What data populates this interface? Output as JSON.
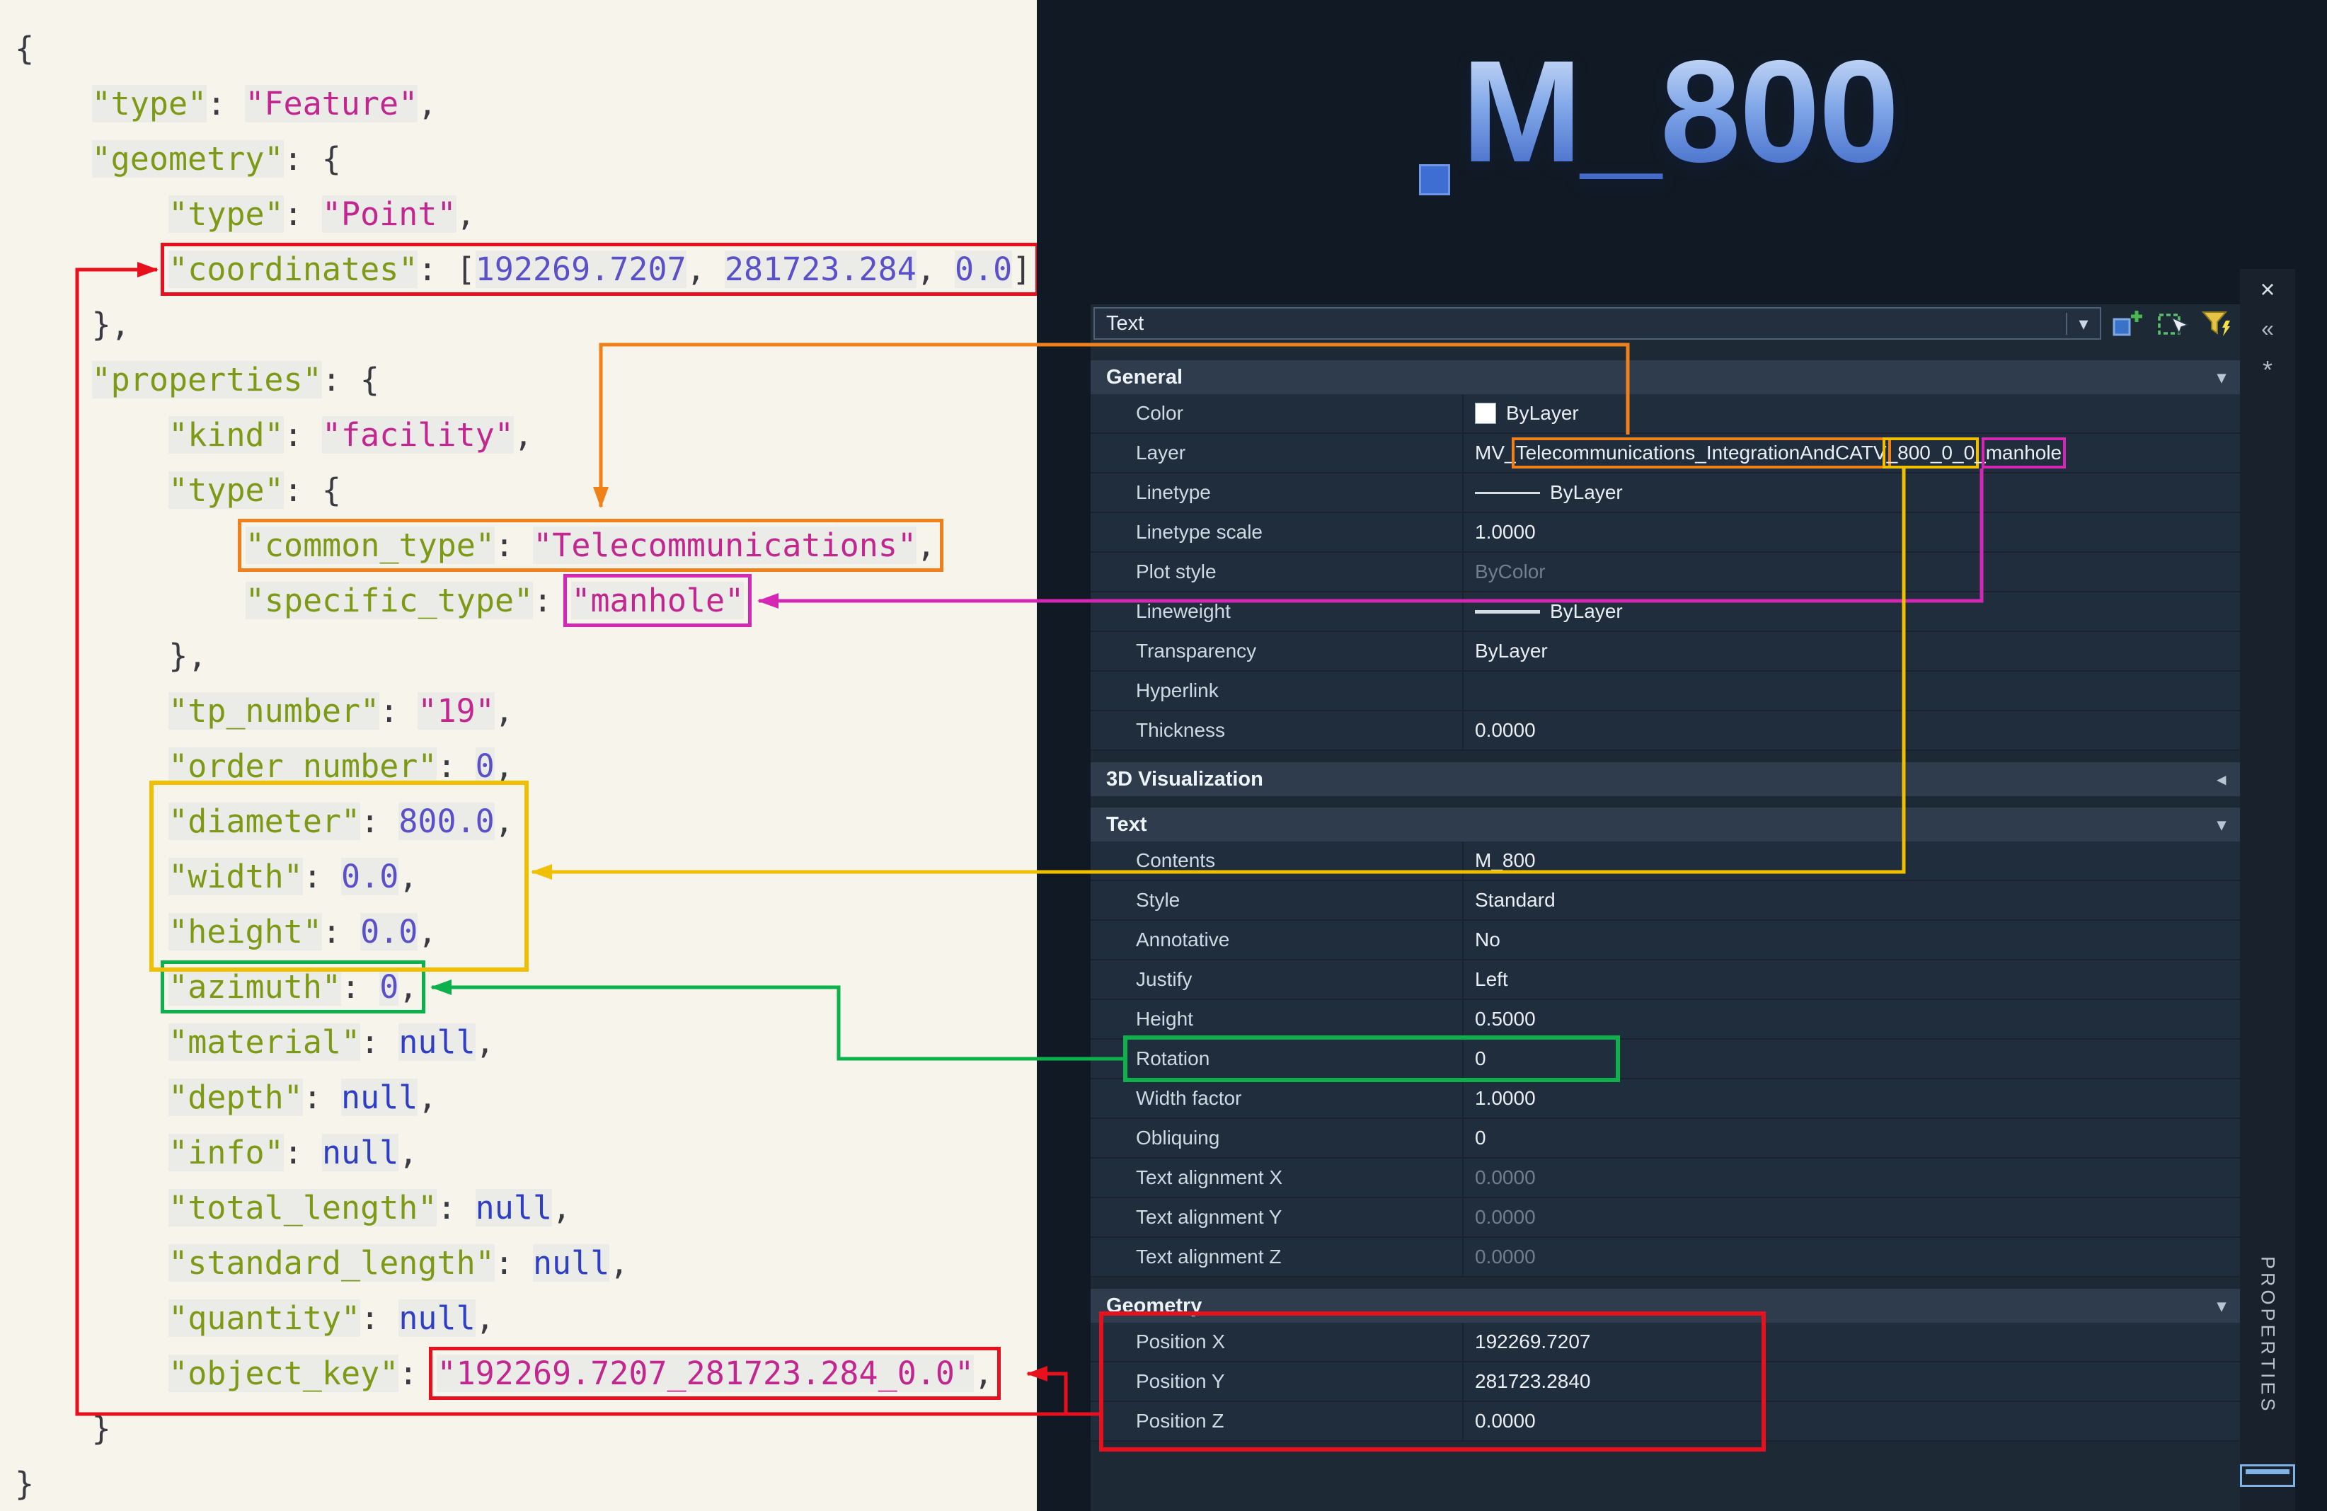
{
  "colors": {
    "red": "#e8101c",
    "orange": "#f08019",
    "magenta": "#d428b4",
    "yellow": "#f0c000",
    "green": "#0db14b",
    "title_blue": "#7fa6e8"
  },
  "canvas": {
    "title": "M_800"
  },
  "code": {
    "lines": [
      {
        "indent": 0,
        "tokens": [
          {
            "c": "p",
            "t": "{"
          }
        ]
      },
      {
        "indent": 1,
        "tokens": [
          {
            "c": "k",
            "t": "\"type\""
          },
          {
            "c": "p",
            "t": ": "
          },
          {
            "c": "s",
            "t": "\"Feature\""
          },
          {
            "c": "p",
            "t": ","
          }
        ]
      },
      {
        "indent": 1,
        "tokens": [
          {
            "c": "k",
            "t": "\"geometry\""
          },
          {
            "c": "p",
            "t": ": {"
          }
        ]
      },
      {
        "indent": 2,
        "tokens": [
          {
            "c": "k",
            "t": "\"type\""
          },
          {
            "c": "p",
            "t": ": "
          },
          {
            "c": "s",
            "t": "\"Point\""
          },
          {
            "c": "p",
            "t": ","
          }
        ]
      },
      {
        "indent": 2,
        "box": {
          "color": "red",
          "from": 0,
          "to": 7
        },
        "tokens": [
          {
            "c": "k",
            "t": "\"coordinates\""
          },
          {
            "c": "p",
            "t": ": ["
          },
          {
            "c": "n",
            "t": "192269.7207"
          },
          {
            "c": "p",
            "t": ", "
          },
          {
            "c": "n",
            "t": "281723.284"
          },
          {
            "c": "p",
            "t": ", "
          },
          {
            "c": "n",
            "t": "0.0"
          },
          {
            "c": "p",
            "t": "]"
          }
        ]
      },
      {
        "indent": 1,
        "tokens": [
          {
            "c": "p",
            "t": "},"
          }
        ]
      },
      {
        "indent": 1,
        "tokens": [
          {
            "c": "k",
            "t": "\"properties\""
          },
          {
            "c": "p",
            "t": ": {"
          }
        ]
      },
      {
        "indent": 2,
        "tokens": [
          {
            "c": "k",
            "t": "\"kind\""
          },
          {
            "c": "p",
            "t": ": "
          },
          {
            "c": "s",
            "t": "\"facility\""
          },
          {
            "c": "p",
            "t": ","
          }
        ]
      },
      {
        "indent": 2,
        "tokens": [
          {
            "c": "k",
            "t": "\"type\""
          },
          {
            "c": "p",
            "t": ": {"
          }
        ]
      },
      {
        "indent": 3,
        "box": {
          "color": "orange",
          "from": 0,
          "to": 3
        },
        "tokens": [
          {
            "c": "k",
            "t": "\"common_type\""
          },
          {
            "c": "p",
            "t": ": "
          },
          {
            "c": "s",
            "t": "\"Telecommunications\""
          },
          {
            "c": "p",
            "t": ","
          }
        ]
      },
      {
        "indent": 3,
        "box": {
          "color": "magenta",
          "from": 2,
          "to": 2
        },
        "tokens": [
          {
            "c": "k",
            "t": "\"specific_type\""
          },
          {
            "c": "p",
            "t": ": "
          },
          {
            "c": "s",
            "t": "\"manhole\""
          }
        ]
      },
      {
        "indent": 2,
        "tokens": [
          {
            "c": "p",
            "t": "},"
          }
        ]
      },
      {
        "indent": 2,
        "tokens": [
          {
            "c": "k",
            "t": "\"tp_number\""
          },
          {
            "c": "p",
            "t": ": "
          },
          {
            "c": "s",
            "t": "\"19\""
          },
          {
            "c": "p",
            "t": ","
          }
        ]
      },
      {
        "indent": 2,
        "tokens": [
          {
            "c": "k",
            "t": "\"order_number\""
          },
          {
            "c": "p",
            "t": ": "
          },
          {
            "c": "n",
            "t": "0"
          },
          {
            "c": "p",
            "t": ","
          }
        ]
      },
      {
        "indent": 2,
        "tokens": [
          {
            "c": "k",
            "t": "\"diameter\""
          },
          {
            "c": "p",
            "t": ": "
          },
          {
            "c": "n",
            "t": "800.0"
          },
          {
            "c": "p",
            "t": ","
          }
        ]
      },
      {
        "indent": 2,
        "tokens": [
          {
            "c": "k",
            "t": "\"width\""
          },
          {
            "c": "p",
            "t": ": "
          },
          {
            "c": "n",
            "t": "0.0"
          },
          {
            "c": "p",
            "t": ","
          }
        ]
      },
      {
        "indent": 2,
        "tokens": [
          {
            "c": "k",
            "t": "\"height\""
          },
          {
            "c": "p",
            "t": ": "
          },
          {
            "c": "n",
            "t": "0.0"
          },
          {
            "c": "p",
            "t": ","
          }
        ]
      },
      {
        "indent": 2,
        "box": {
          "color": "green",
          "from": 0,
          "to": 3
        },
        "tokens": [
          {
            "c": "k",
            "t": "\"azimuth\""
          },
          {
            "c": "p",
            "t": ": "
          },
          {
            "c": "n",
            "t": "0"
          },
          {
            "c": "p",
            "t": ","
          }
        ]
      },
      {
        "indent": 2,
        "tokens": [
          {
            "c": "k",
            "t": "\"material\""
          },
          {
            "c": "p",
            "t": ": "
          },
          {
            "c": "u",
            "t": "null"
          },
          {
            "c": "p",
            "t": ","
          }
        ]
      },
      {
        "indent": 2,
        "tokens": [
          {
            "c": "k",
            "t": "\"depth\""
          },
          {
            "c": "p",
            "t": ": "
          },
          {
            "c": "u",
            "t": "null"
          },
          {
            "c": "p",
            "t": ","
          }
        ]
      },
      {
        "indent": 2,
        "tokens": [
          {
            "c": "k",
            "t": "\"info\""
          },
          {
            "c": "p",
            "t": ": "
          },
          {
            "c": "u",
            "t": "null"
          },
          {
            "c": "p",
            "t": ","
          }
        ]
      },
      {
        "indent": 2,
        "tokens": [
          {
            "c": "k",
            "t": "\"total_length\""
          },
          {
            "c": "p",
            "t": ": "
          },
          {
            "c": "u",
            "t": "null"
          },
          {
            "c": "p",
            "t": ","
          }
        ]
      },
      {
        "indent": 2,
        "tokens": [
          {
            "c": "k",
            "t": "\"standard_length\""
          },
          {
            "c": "p",
            "t": ": "
          },
          {
            "c": "u",
            "t": "null"
          },
          {
            "c": "p",
            "t": ","
          }
        ]
      },
      {
        "indent": 2,
        "tokens": [
          {
            "c": "k",
            "t": "\"quantity\""
          },
          {
            "c": "p",
            "t": ": "
          },
          {
            "c": "u",
            "t": "null"
          },
          {
            "c": "p",
            "t": ","
          }
        ]
      },
      {
        "indent": 2,
        "box": {
          "color": "red",
          "from": 2,
          "to": 3
        },
        "tokens": [
          {
            "c": "k",
            "t": "\"object_key\""
          },
          {
            "c": "p",
            "t": ": "
          },
          {
            "c": "s",
            "t": "\"192269.7207_281723.284_0.0\""
          },
          {
            "c": "p",
            "t": ","
          }
        ]
      },
      {
        "indent": 1,
        "tokens": [
          {
            "c": "p",
            "t": "}"
          }
        ]
      },
      {
        "indent": 0,
        "tokens": [
          {
            "c": "p",
            "t": "}"
          }
        ]
      }
    ]
  },
  "palette": {
    "type_selector": "Text",
    "icons": {
      "combo_arrow": "▾"
    },
    "chevrons": {
      "expanded": "▾",
      "collapsed": "◂"
    },
    "rail": {
      "title": "PROPERTIES",
      "close": "×",
      "autohide": "«",
      "menu": "*"
    },
    "sections": [
      {
        "title": "General",
        "state": "expanded",
        "rows": [
          {
            "label": "Color",
            "value": "ByLayer",
            "swatch": "#ffffff"
          },
          {
            "label": "Layer",
            "parts": [
              {
                "text": "MV_"
              },
              {
                "text": "Telecommunications_IntegrationAndCATV",
                "box": "orange"
              },
              {
                "text": "_800_0_0",
                "box": "yellow"
              },
              {
                "text": "_"
              },
              {
                "text": "manhole",
                "box": "magenta"
              }
            ]
          },
          {
            "label": "Linetype",
            "value": "ByLayer",
            "linetype": "thin"
          },
          {
            "label": "Linetype scale",
            "value": "1.0000"
          },
          {
            "label": "Plot style",
            "value": "ByColor",
            "muted": true
          },
          {
            "label": "Lineweight",
            "value": "ByLayer",
            "linetype": "thick"
          },
          {
            "label": "Transparency",
            "value": "ByLayer"
          },
          {
            "label": "Hyperlink",
            "value": ""
          },
          {
            "label": "Thickness",
            "value": "0.0000"
          }
        ]
      },
      {
        "title": "3D Visualization",
        "state": "collapsed",
        "rows": []
      },
      {
        "title": "Text",
        "state": "expanded",
        "rows": [
          {
            "label": "Contents",
            "value": "M_800"
          },
          {
            "label": "Style",
            "value": "Standard"
          },
          {
            "label": "Annotative",
            "value": "No"
          },
          {
            "label": "Justify",
            "value": "Left"
          },
          {
            "label": "Height",
            "value": "0.5000"
          },
          {
            "label": "Rotation",
            "value": "0"
          },
          {
            "label": "Width factor",
            "value": "1.0000"
          },
          {
            "label": "Obliquing",
            "value": "0"
          },
          {
            "label": "Text alignment X",
            "value": "0.0000",
            "muted": true
          },
          {
            "label": "Text alignment Y",
            "value": "0.0000",
            "muted": true
          },
          {
            "label": "Text alignment Z",
            "value": "0.0000",
            "muted": true
          }
        ]
      },
      {
        "title": "Geometry",
        "state": "expanded",
        "rows": [
          {
            "label": "Position X",
            "value": "192269.7207"
          },
          {
            "label": "Position Y",
            "value": "281723.2840"
          },
          {
            "label": "Position Z",
            "value": "0.0000"
          }
        ]
      }
    ]
  }
}
